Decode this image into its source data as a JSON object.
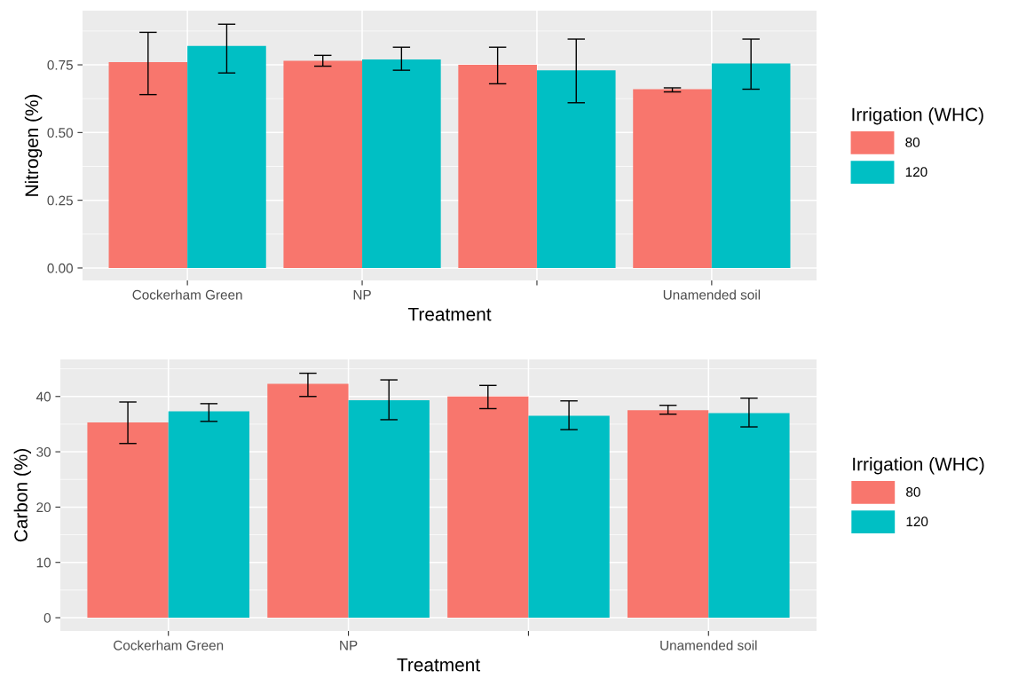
{
  "chart_data": [
    {
      "type": "bar",
      "xlabel": "Treatment",
      "ylabel": "Nitrogen (%)",
      "legend_title": "Irrigation (WHC)",
      "categories": [
        "Cockerham Green",
        "NP",
        null,
        "Unamended soil"
      ],
      "series": [
        {
          "name": "80",
          "color": "#f8766d",
          "values": [
            0.76,
            0.765,
            0.75,
            0.66
          ],
          "errors": [
            [
              0.64,
              0.87
            ],
            [
              0.745,
              0.785
            ],
            [
              0.68,
              0.815
            ],
            [
              0.65,
              0.665
            ]
          ]
        },
        {
          "name": "120",
          "color": "#00bfc4",
          "values": [
            0.82,
            0.77,
            0.73,
            0.755
          ],
          "errors": [
            [
              0.72,
              0.9
            ],
            [
              0.73,
              0.815
            ],
            [
              0.61,
              0.845
            ],
            [
              0.66,
              0.845
            ]
          ]
        }
      ],
      "ylim": [
        -0.046,
        0.95
      ],
      "yticks": [
        {
          "value": 0,
          "label": "0.00"
        },
        {
          "value": 0.25,
          "label": "0.25"
        },
        {
          "value": 0.5,
          "label": "0.50"
        },
        {
          "value": 0.75,
          "label": "0.75"
        }
      ],
      "grid": true,
      "legend": "right"
    },
    {
      "type": "bar",
      "xlabel": "Treatment",
      "ylabel": "Carbon (%)",
      "legend_title": "Irrigation (WHC)",
      "categories": [
        "Cockerham Green",
        "NP",
        null,
        "Unamended soil"
      ],
      "series": [
        {
          "name": "80",
          "color": "#f8766d",
          "values": [
            35.3,
            42.3,
            40.0,
            37.5
          ],
          "errors": [
            [
              31.5,
              39.0
            ],
            [
              40.0,
              44.2
            ],
            [
              37.8,
              42.0
            ],
            [
              36.8,
              38.4
            ]
          ]
        },
        {
          "name": "120",
          "color": "#00bfc4",
          "values": [
            37.3,
            39.3,
            36.5,
            37.0
          ],
          "errors": [
            [
              35.5,
              38.7
            ],
            [
              35.8,
              43.0
            ],
            [
              34.0,
              39.2
            ],
            [
              34.5,
              39.7
            ]
          ]
        }
      ],
      "ylim": [
        -2.4,
        46.7
      ],
      "yticks": [
        0,
        10,
        20,
        30,
        40
      ],
      "grid": true,
      "legend": "right"
    }
  ]
}
